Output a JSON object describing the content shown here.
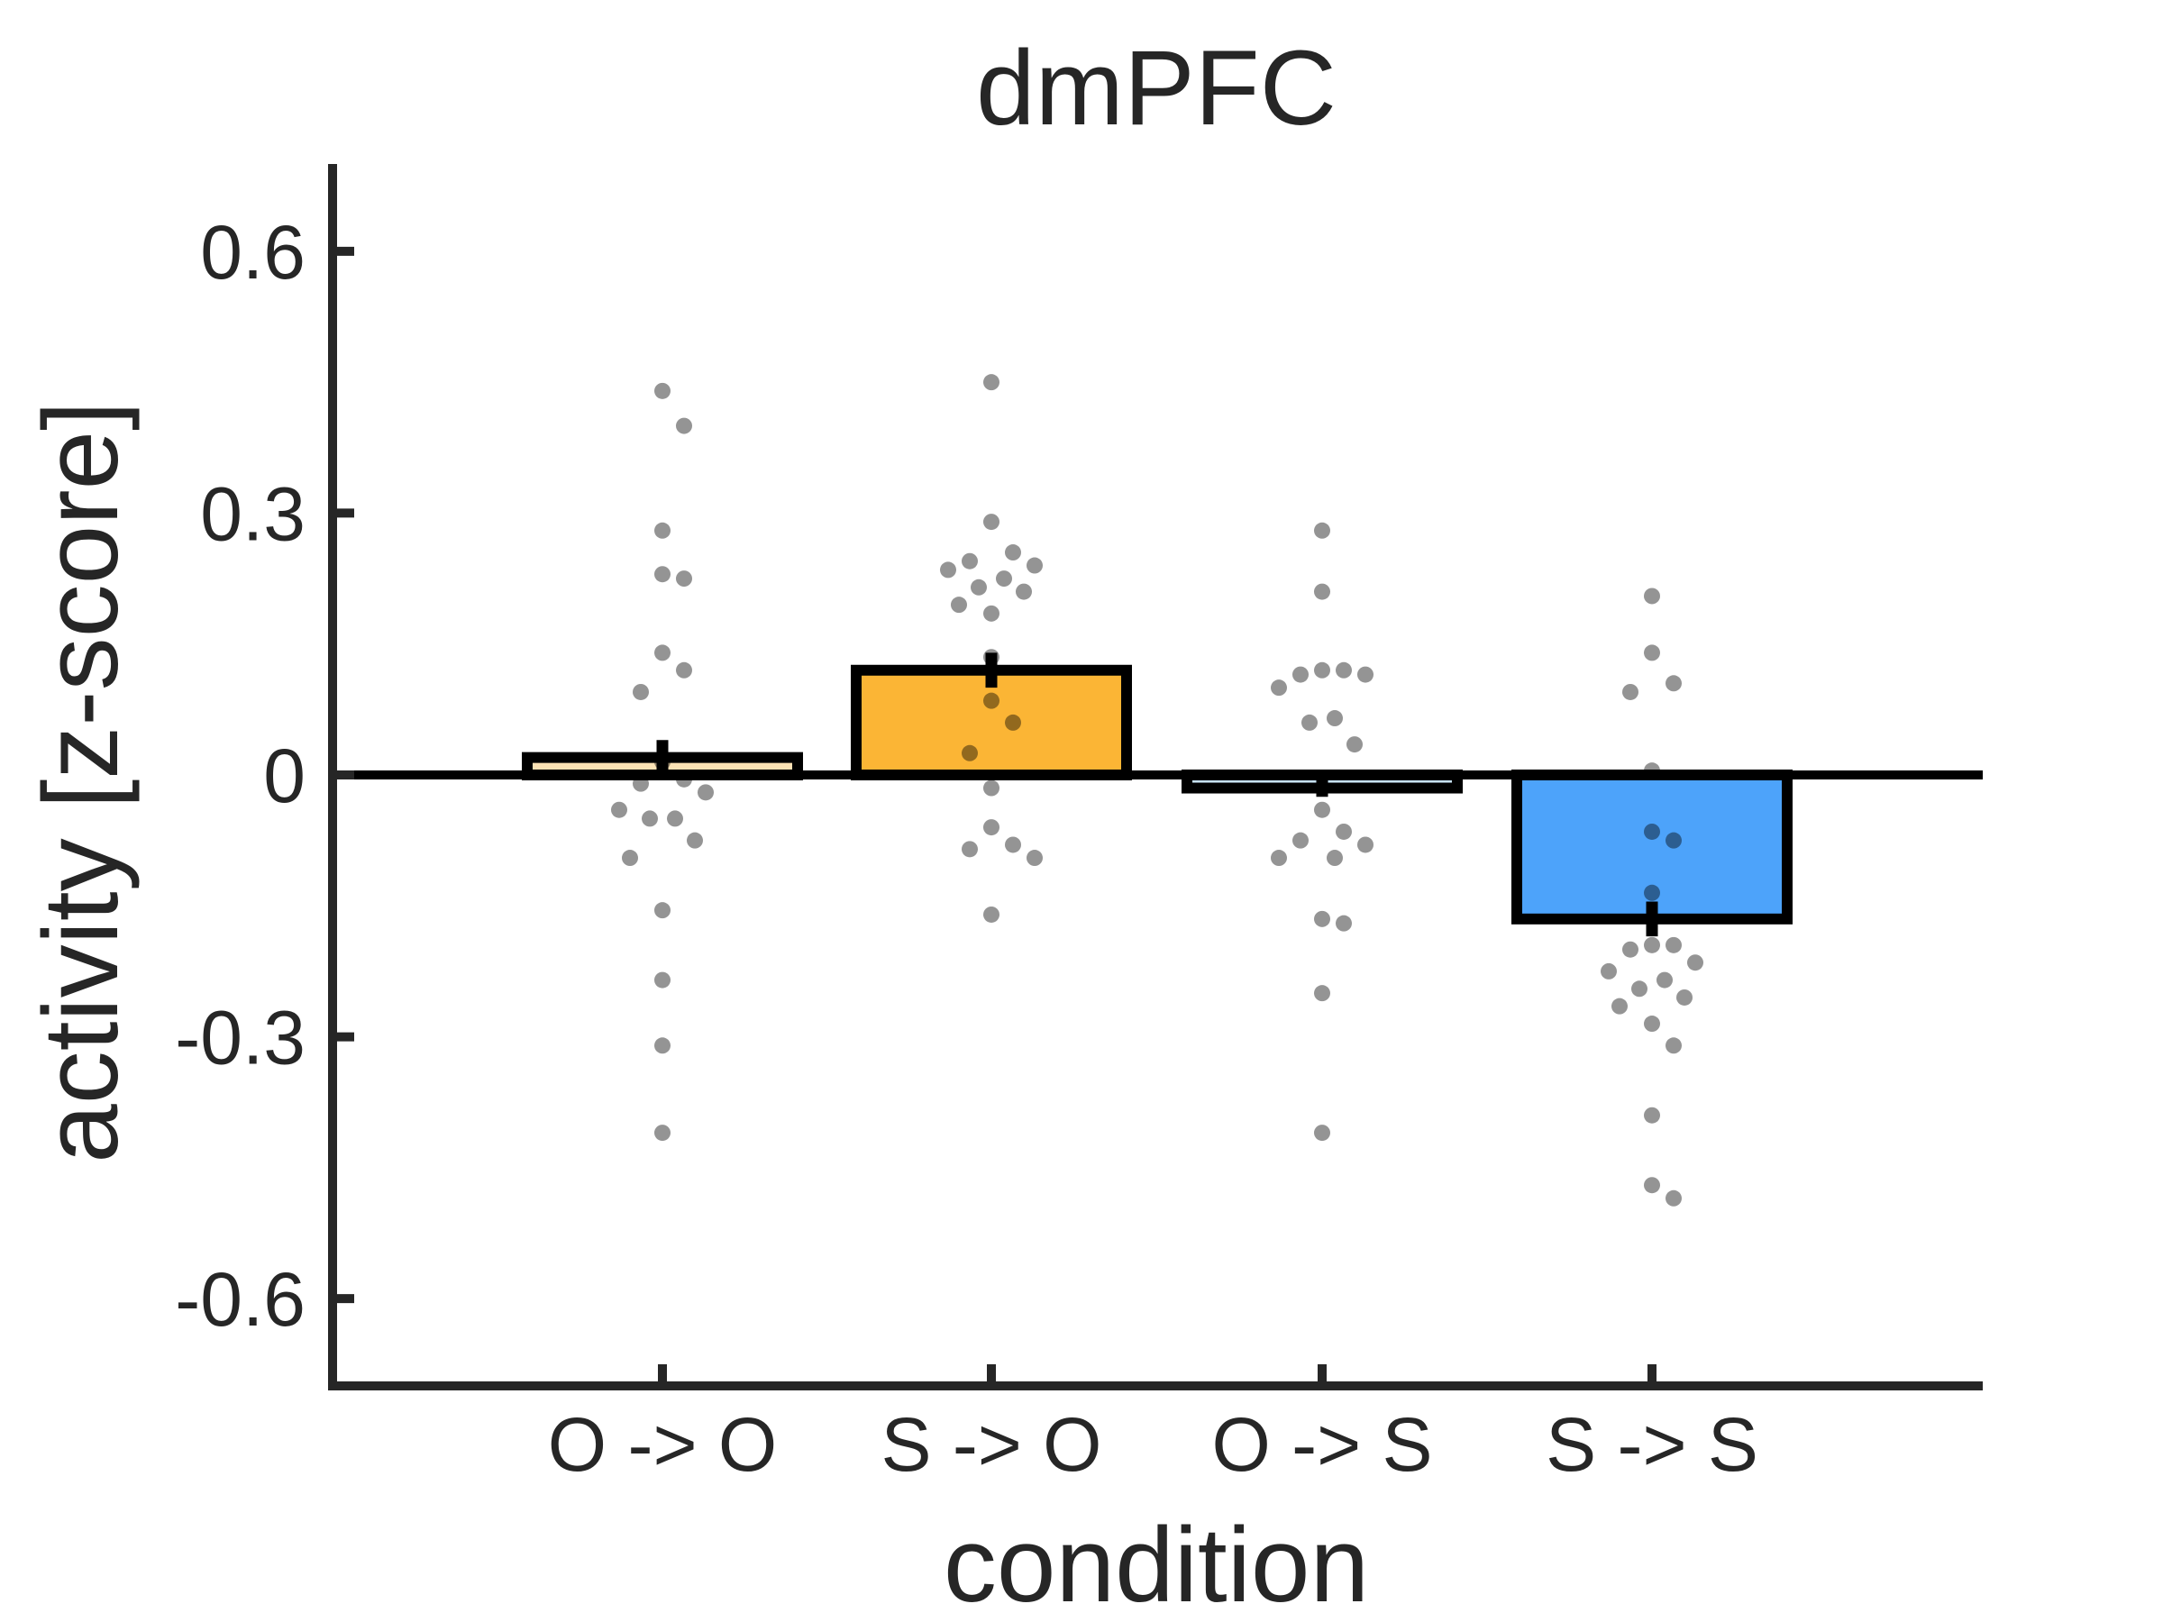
{
  "chart_data": {
    "type": "bar",
    "title": "dmPFC",
    "xlabel": "condition",
    "ylabel": "activity [z-score]",
    "ylim": [
      -0.7,
      0.7
    ],
    "yticks": [
      0.6,
      0.3,
      0,
      -0.3,
      -0.6
    ],
    "ytick_labels": [
      "0.6",
      "0.3",
      "0",
      "-0.3",
      "-0.6"
    ],
    "categories": [
      "O -> O",
      "S -> O",
      "O -> S",
      "S -> S"
    ],
    "values": [
      0.02,
      0.12,
      -0.015,
      -0.165
    ],
    "errors": [
      0.02,
      0.02,
      0.01,
      0.02
    ],
    "colors": [
      "#FBE1B4",
      "#FBB535",
      "#C8E3F8",
      "#4DA3FA"
    ],
    "grid": false,
    "points": [
      [
        0.44,
        0.4,
        0.28,
        0.23,
        0.225,
        0.14,
        0.12,
        0.095,
        0.015,
        -0.005,
        -0.01,
        -0.02,
        -0.04,
        -0.05,
        -0.05,
        -0.075,
        -0.095,
        -0.155,
        -0.235,
        -0.31,
        -0.41
      ],
      [
        0.45,
        0.29,
        0.255,
        0.245,
        0.24,
        0.235,
        0.225,
        0.215,
        0.21,
        0.195,
        0.185,
        0.135,
        0.085,
        0.06,
        0.025,
        -0.015,
        -0.06,
        -0.08,
        -0.085,
        -0.095,
        -0.16
      ],
      [
        0.28,
        0.21,
        0.12,
        0.12,
        0.115,
        0.115,
        0.1,
        0.065,
        0.06,
        0.035,
        -0.04,
        -0.065,
        -0.075,
        -0.08,
        -0.095,
        -0.095,
        -0.165,
        -0.17,
        -0.25,
        -0.41
      ],
      [
        0.205,
        0.14,
        0.105,
        0.095,
        0.005,
        -0.065,
        -0.075,
        -0.135,
        -0.195,
        -0.195,
        -0.2,
        -0.215,
        -0.225,
        -0.235,
        -0.245,
        -0.255,
        -0.265,
        -0.285,
        -0.31,
        -0.39,
        -0.47,
        -0.485
      ]
    ]
  }
}
